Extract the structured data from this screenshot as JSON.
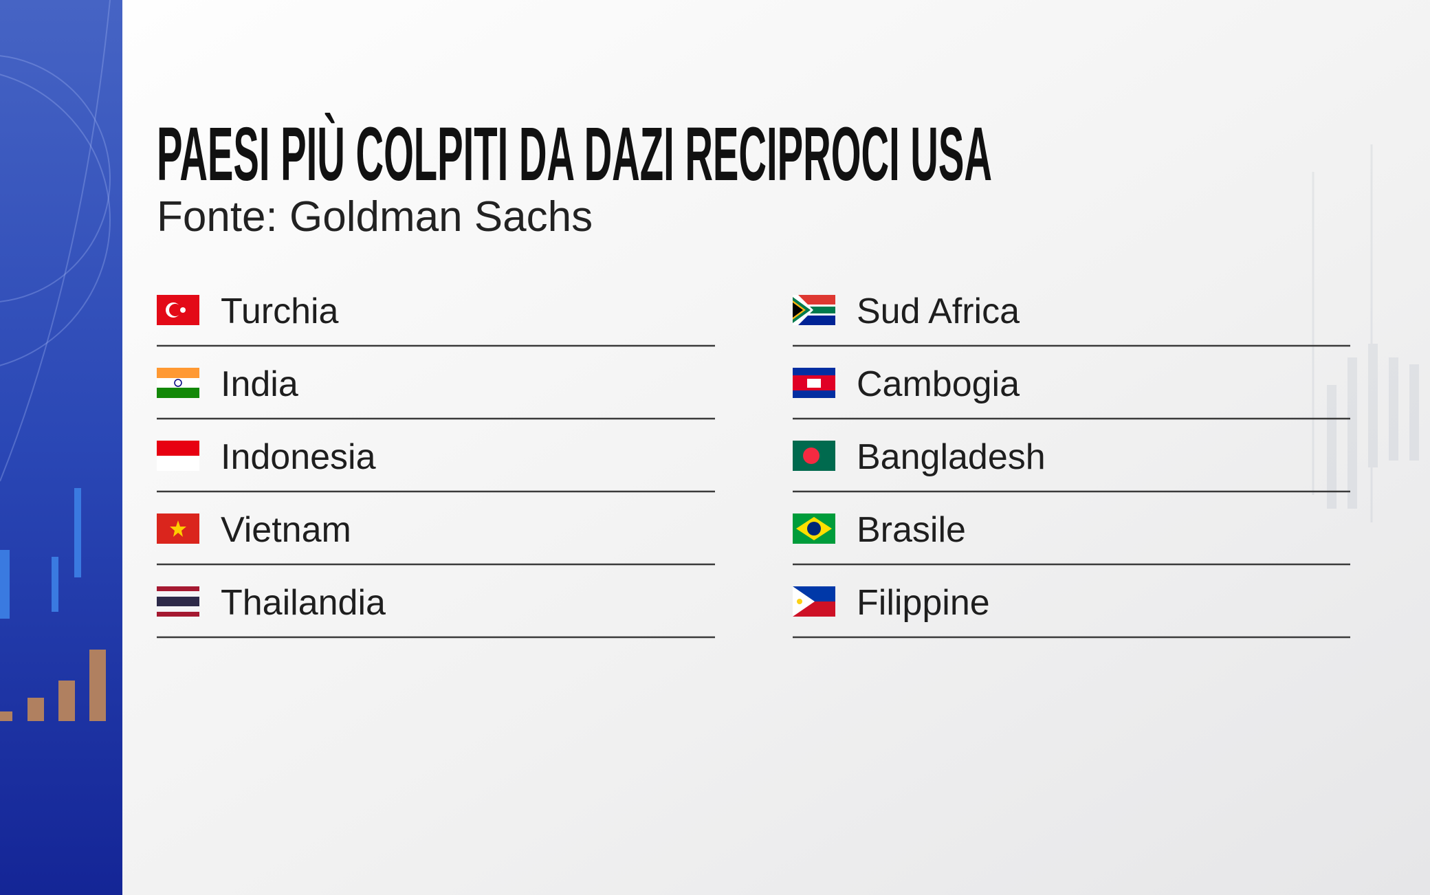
{
  "header": {
    "title": "PAESI PIÙ COLPITI DA DAZI RECIPROCI USA",
    "subtitle": "Fonte: Goldman Sachs"
  },
  "columns": [
    {
      "items": [
        "Turchia",
        "India",
        "Indonesia",
        "Vietnam",
        "Thailandia"
      ]
    },
    {
      "items": [
        "Sud Africa",
        "Cambogia",
        "Bangladesh",
        "Brasile",
        "Filippine"
      ]
    }
  ]
}
